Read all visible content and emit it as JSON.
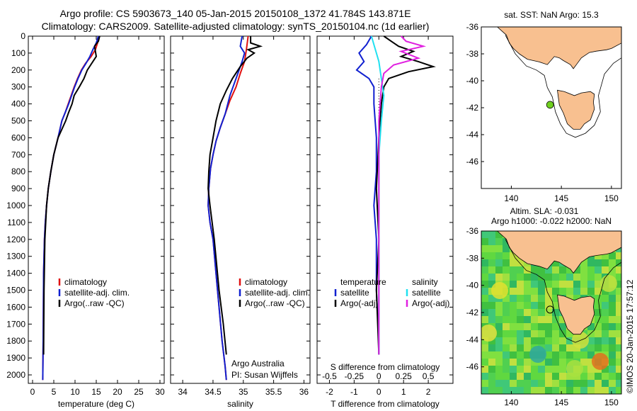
{
  "header": {
    "line1": "Argo profile: CS 5903673_140 05-Jan-2015 20150108_1372 41.784S 143.871E",
    "line2": "Climatology: CARS2009. Satellite-adjusted climatology: synTS_20150104.nc (1d earlier)"
  },
  "colors": {
    "climatology": "#e01010",
    "satellite": "#1020d0",
    "argo": "#000000",
    "sal_satellite": "#20e0f0",
    "sal_argo": "#e020e0",
    "land": "#f8c090",
    "sst_marker": "#70d020"
  },
  "credit": {
    "stamp": "©IMOS 20-Jan-2015 17:57:12",
    "agency": "Argo Australia",
    "pi": "PI: Susan Wijffels"
  },
  "chart_data": [
    {
      "id": "temperature",
      "type": "line",
      "xlabel": "temperature (deg C)",
      "ylabel": "",
      "xlim": [
        -1,
        31
      ],
      "ylim": [
        2050,
        0
      ],
      "xticks": [
        0,
        5,
        10,
        15,
        20,
        25,
        30
      ],
      "yticks": [
        0,
        100,
        200,
        300,
        400,
        500,
        600,
        700,
        800,
        900,
        1000,
        1100,
        1200,
        1300,
        1400,
        1500,
        1600,
        1700,
        1800,
        1900,
        2000
      ],
      "legend": [
        "climatology",
        "satellite-adj. clim.",
        "Argo(..raw -QC)"
      ],
      "series": [
        {
          "name": "climatology",
          "color_key": "climatology",
          "x": [
            15.5,
            15.3,
            14.8,
            13.8,
            12.5,
            11.5,
            10.6,
            9.8,
            9.1,
            8.4,
            7.7,
            6.9,
            6.0,
            5.0,
            4.3,
            3.7,
            3.3,
            3.0,
            2.8,
            2.6,
            2.5,
            2.4
          ],
          "y": [
            0,
            40,
            80,
            120,
            160,
            200,
            250,
            300,
            350,
            400,
            450,
            500,
            600,
            700,
            800,
            900,
            1000,
            1100,
            1200,
            1400,
            1800,
            2030
          ]
        },
        {
          "name": "satellite-adj. clim.",
          "color_key": "satellite",
          "x": [
            15.5,
            15.0,
            14.2,
            13.5,
            12.6,
            11.6,
            10.7,
            9.9,
            9.2,
            8.5,
            7.7,
            6.9,
            6.0,
            5.0,
            4.3,
            3.7,
            3.3,
            3.0,
            2.8,
            2.6,
            2.5,
            2.4
          ],
          "y": [
            0,
            40,
            80,
            120,
            160,
            200,
            250,
            300,
            350,
            400,
            450,
            500,
            600,
            700,
            800,
            900,
            1000,
            1100,
            1200,
            1400,
            1800,
            2030
          ]
        },
        {
          "name": "Argo(..raw -QC)",
          "color_key": "argo",
          "x": [
            15.8,
            15.5,
            14.6,
            14.8,
            15.0,
            14.2,
            12.9,
            12.1,
            11.0,
            9.8,
            9.3,
            8.5,
            7.8,
            6.9,
            6.0,
            5.0,
            4.3,
            3.7,
            3.3,
            2.9,
            2.7,
            2.6
          ],
          "y": [
            0,
            30,
            60,
            90,
            120,
            150,
            200,
            250,
            300,
            350,
            400,
            450,
            500,
            550,
            600,
            700,
            800,
            900,
            1000,
            1200,
            1500,
            1880
          ]
        }
      ]
    },
    {
      "id": "salinity",
      "type": "line",
      "xlabel": "salinity",
      "ylabel": "",
      "xlim": [
        33.8,
        36.1
      ],
      "ylim": [
        2050,
        0
      ],
      "xticks": [
        34,
        34.5,
        35,
        35.5,
        36
      ],
      "legend": [
        "climatology",
        "satellite-adj. clim.",
        "Argo(..raw -QC)"
      ],
      "series": [
        {
          "name": "climatology",
          "color_key": "climatology",
          "x": [
            35.08,
            35.05,
            35.02,
            34.95,
            34.88,
            34.78,
            34.7,
            34.62,
            34.55,
            34.5,
            34.46,
            34.44,
            34.43,
            34.42,
            34.45,
            34.5,
            34.55,
            34.6,
            34.65,
            34.7,
            34.72
          ],
          "y": [
            0,
            80,
            150,
            220,
            300,
            380,
            460,
            540,
            620,
            700,
            780,
            860,
            900,
            1000,
            1100,
            1200,
            1400,
            1600,
            1800,
            1950,
            2030
          ]
        },
        {
          "name": "satellite-adj. clim.",
          "color_key": "satellite",
          "x": [
            34.98,
            34.95,
            35.02,
            34.98,
            34.88,
            34.78,
            34.7,
            34.62,
            34.55,
            34.5,
            34.46,
            34.44,
            34.43,
            34.42,
            34.45,
            34.5,
            34.55,
            34.6,
            34.65,
            34.7,
            34.72
          ],
          "y": [
            0,
            60,
            100,
            150,
            250,
            350,
            460,
            540,
            620,
            700,
            780,
            860,
            900,
            1000,
            1100,
            1200,
            1400,
            1600,
            1800,
            1950,
            2030
          ]
        },
        {
          "name": "Argo(..raw -QC)",
          "color_key": "argo",
          "x": [
            35.12,
            35.12,
            35.28,
            35.08,
            35.18,
            35.06,
            34.95,
            34.82,
            34.72,
            34.62,
            34.55,
            34.5,
            34.45,
            34.43,
            34.42,
            34.45,
            34.52,
            34.6,
            34.67,
            34.72
          ],
          "y": [
            0,
            40,
            60,
            80,
            100,
            130,
            180,
            250,
            320,
            400,
            500,
            600,
            700,
            800,
            900,
            1000,
            1200,
            1500,
            1700,
            1880
          ]
        }
      ]
    },
    {
      "id": "difference",
      "type": "line",
      "xlabel": "T difference from climatology",
      "xlabel_top": "S difference from climatology",
      "ylabel": "",
      "xlim": [
        -2.5,
        3
      ],
      "ylim": [
        2050,
        0
      ],
      "xticks": [
        -2,
        -1,
        0,
        1,
        2
      ],
      "xticks_top_labels": [
        "-0.5",
        "-0.25",
        "0",
        "0.25",
        "0.5"
      ],
      "legend_titles": [
        "temperature",
        "salinity"
      ],
      "legend": [
        "satellite",
        "Argo(-adj)",
        "satellite",
        "Argo(-adj)"
      ],
      "series": [
        {
          "name": "T satellite",
          "color_key": "satellite",
          "x": [
            -0.3,
            -0.5,
            -0.8,
            -0.6,
            -0.9,
            -0.4,
            -0.2,
            -0.2,
            -0.1,
            -0.1,
            -0.2,
            -0.1,
            -0.1,
            0,
            0
          ],
          "y": [
            0,
            50,
            100,
            150,
            200,
            250,
            300,
            400,
            600,
            800,
            1000,
            1200,
            1500,
            1800,
            1880
          ]
        },
        {
          "name": "T Argo(-adj)",
          "color_key": "argo",
          "x": [
            0.2,
            0.5,
            0.8,
            1.4,
            0.9,
            1.6,
            2.2,
            1.2,
            0.4,
            0.2,
            0.1,
            0,
            -0.1,
            0,
            -0.1,
            0
          ],
          "y": [
            0,
            30,
            60,
            90,
            120,
            150,
            180,
            210,
            250,
            300,
            400,
            600,
            900,
            1200,
            1500,
            1880
          ]
        },
        {
          "name": "S satellite",
          "color_key": "sal_satellite",
          "x": [
            -0.3,
            -0.2,
            -0.1,
            0,
            0.1,
            0.2,
            0.1,
            0,
            0,
            0,
            0,
            0
          ],
          "y": [
            0,
            50,
            100,
            150,
            250,
            350,
            500,
            700,
            900,
            1200,
            1500,
            1880
          ]
        },
        {
          "name": "S Argo(-adj)",
          "color_key": "sal_argo",
          "x": [
            0.9,
            1.1,
            1.8,
            0.9,
            1.6,
            0.6,
            0.2,
            0.1,
            0,
            0,
            0,
            0
          ],
          "y": [
            0,
            30,
            60,
            90,
            130,
            170,
            220,
            300,
            500,
            800,
            1200,
            1880
          ]
        }
      ]
    },
    {
      "id": "sst_map",
      "type": "map",
      "title": "sat. SST: NaN Argo: 15.3",
      "xlim": [
        137,
        151
      ],
      "ylim": [
        -48,
        -36
      ],
      "xticks": [
        140,
        145,
        150
      ],
      "yticks": [
        -36,
        -38,
        -40,
        -42,
        -44,
        -46
      ],
      "marker": {
        "lon": 143.871,
        "lat": -41.784
      }
    },
    {
      "id": "sla_map",
      "type": "heatmap",
      "title_line1": "Altim. SLA: -0.031",
      "title_line2": "Argo h1000: -0.022 h2000: NaN",
      "xlim": [
        137,
        151
      ],
      "ylim": [
        -48,
        -36
      ],
      "xticks": [
        140,
        145,
        150
      ],
      "yticks": [
        -36,
        -38,
        -40,
        -42,
        -44,
        -46
      ],
      "marker": {
        "lon": 143.871,
        "lat": -41.784
      }
    }
  ]
}
